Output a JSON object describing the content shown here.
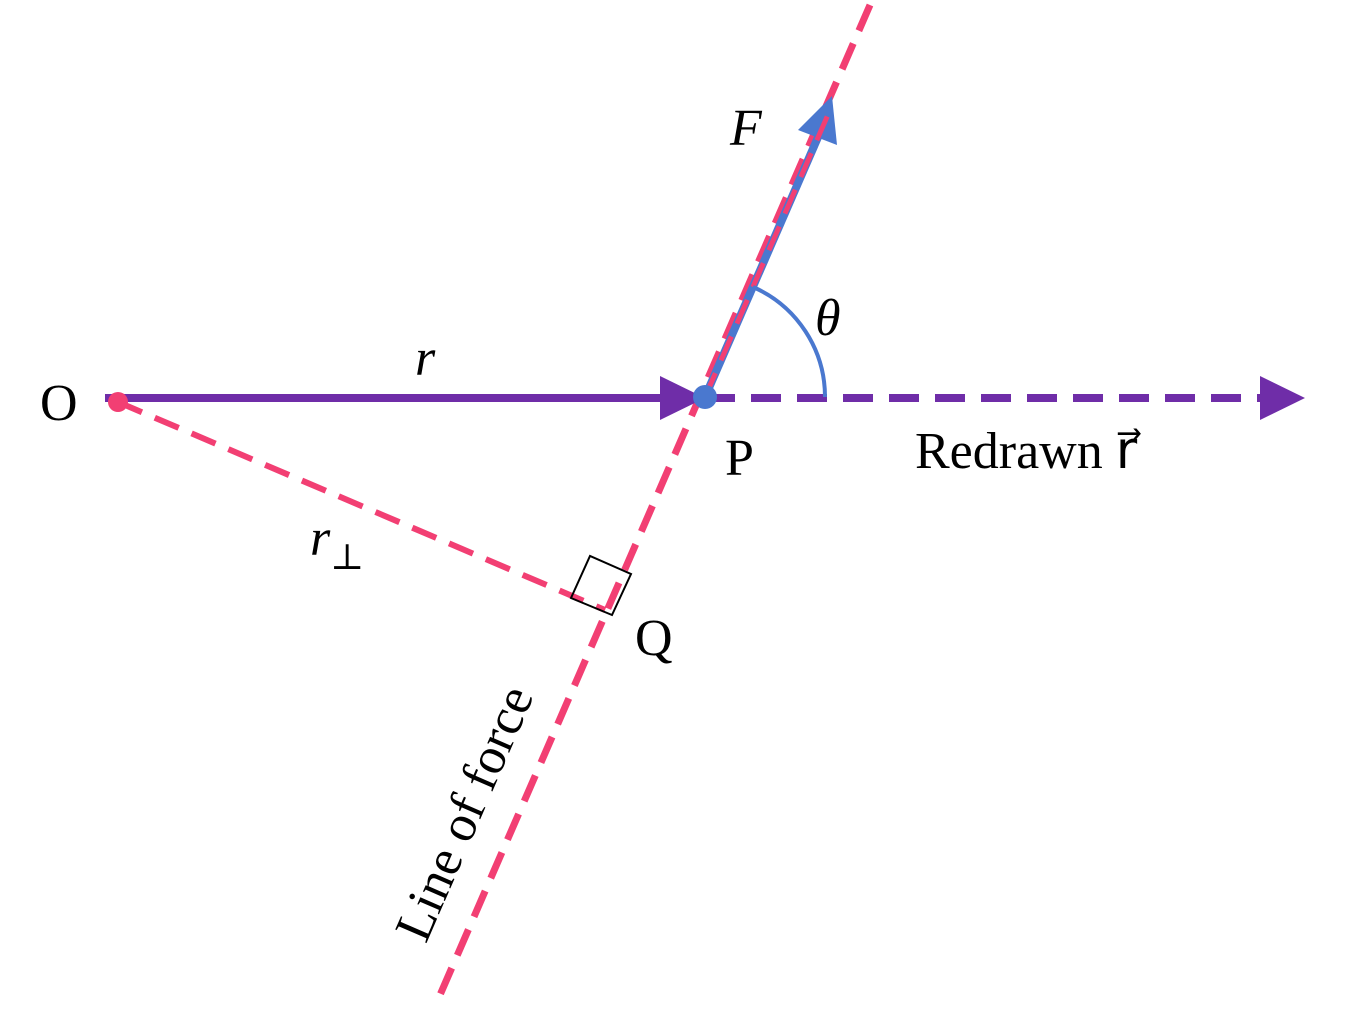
{
  "labels": {
    "origin": "O",
    "point_p": "P",
    "point_q": "Q",
    "force": "F⃗",
    "position": "r⃗",
    "angle": "θ",
    "perpendicular": {
      "symbol": "r",
      "subscript": "⊥"
    },
    "redrawn": "Redrawn r⃗",
    "line_of_force": "Line of force"
  }
}
